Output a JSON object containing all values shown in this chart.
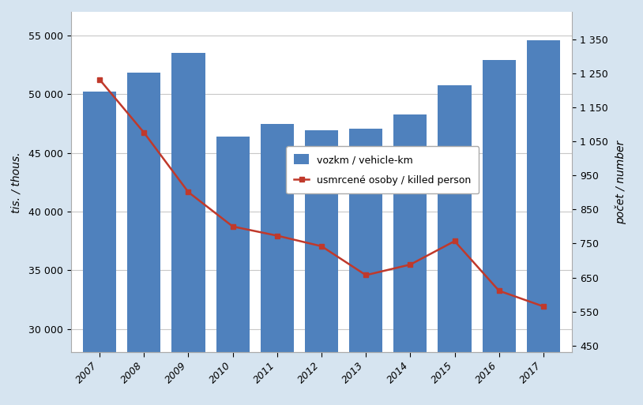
{
  "years": [
    2007,
    2008,
    2009,
    2010,
    2011,
    2012,
    2013,
    2014,
    2015,
    2016,
    2017
  ],
  "vozkm": [
    50200,
    51850,
    53550,
    46400,
    47500,
    46900,
    47050,
    48300,
    50800,
    52900,
    54600
  ],
  "killed": [
    1232,
    1076,
    901,
    800,
    773,
    742,
    657,
    688,
    757,
    611,
    565
  ],
  "bar_color": "#4f81bd",
  "line_color": "#c0392b",
  "background_color": "#d6e4f0",
  "plot_bg_color": "#ffffff",
  "ylabel_left": "tis. / thous.",
  "ylabel_right": "počet / number",
  "legend_bar": "vozkm / vehicle-km",
  "legend_line": "usmrcené osoby / killed person",
  "ylim_left": [
    28000,
    57000
  ],
  "ylim_right": [
    430,
    1430
  ],
  "yticks_left": [
    30000,
    35000,
    40000,
    45000,
    50000,
    55000
  ],
  "yticks_right": [
    450,
    550,
    650,
    750,
    850,
    950,
    1050,
    1150,
    1250,
    1350
  ],
  "grid_color": "#c8c8c8",
  "marker": "s",
  "marker_size": 5,
  "line_width": 1.8,
  "axis_fontsize": 10,
  "tick_fontsize": 9,
  "legend_fontsize": 9,
  "bar_width": 0.75
}
